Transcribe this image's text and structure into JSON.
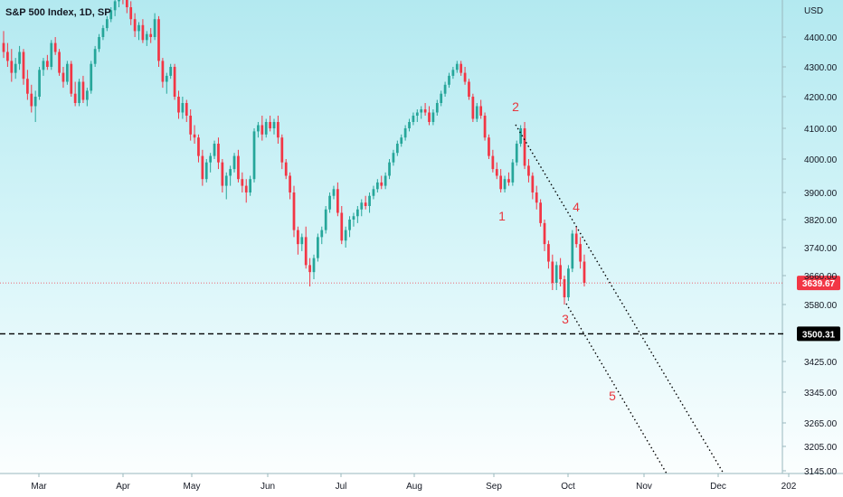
{
  "chart_data": {
    "type": "candlestick",
    "title": "S&P 500 Index, 1D, SP",
    "currency": "USD",
    "ylim": [
      3130,
      4560
    ],
    "y_ticks": [
      {
        "value": 4400,
        "label": "4400.00"
      },
      {
        "value": 4300,
        "label": "4300.00"
      },
      {
        "value": 4200,
        "label": "4200.00"
      },
      {
        "value": 4100,
        "label": "4100.00"
      },
      {
        "value": 4000,
        "label": "4000.00"
      },
      {
        "value": 3900,
        "label": "3900.00"
      },
      {
        "value": 3820,
        "label": "3820.00"
      },
      {
        "value": 3740,
        "label": "3740.00"
      },
      {
        "value": 3660,
        "label": "3660.00"
      },
      {
        "value": 3580,
        "label": "3580.00"
      },
      {
        "value": 3425,
        "label": "3425.00"
      },
      {
        "value": 3345,
        "label": "3345.00"
      },
      {
        "value": 3265,
        "label": "3265.00"
      },
      {
        "value": 3205,
        "label": "3205.00"
      },
      {
        "value": 3145,
        "label": "3145.00"
      }
    ],
    "x_ticks": [
      "Mar",
      "Apr",
      "May",
      "Jun",
      "Jul",
      "Aug",
      "Sep",
      "Oct",
      "Nov",
      "Dec",
      "202"
    ],
    "last_price": {
      "value": 3639.67,
      "label": "3639.67",
      "color": "#f23645"
    },
    "horizontal_level": {
      "value": 3500.31,
      "label": "3500.31",
      "style": "dashed",
      "color": "#000000"
    },
    "colors": {
      "up": "#26a69a",
      "down": "#f23645"
    },
    "wave_labels": [
      "1",
      "2",
      "3",
      "4",
      "5"
    ],
    "wave_label_color": "#e8363d",
    "series": [
      {
        "name": "",
        "values": [
          [
            4380,
            4420,
            4330,
            4350
          ],
          [
            4350,
            4380,
            4300,
            4320
          ],
          [
            4320,
            4360,
            4250,
            4280
          ],
          [
            4280,
            4330,
            4260,
            4310
          ],
          [
            4310,
            4370,
            4290,
            4350
          ],
          [
            4350,
            4360,
            4240,
            4260
          ],
          [
            4260,
            4290,
            4190,
            4210
          ],
          [
            4210,
            4240,
            4150,
            4170
          ],
          [
            4170,
            4220,
            4120,
            4200
          ],
          [
            4200,
            4300,
            4190,
            4290
          ],
          [
            4290,
            4330,
            4270,
            4320
          ],
          [
            4320,
            4340,
            4290,
            4300
          ],
          [
            4300,
            4390,
            4290,
            4380
          ],
          [
            4380,
            4400,
            4340,
            4350
          ],
          [
            4350,
            4360,
            4270,
            4280
          ],
          [
            4280,
            4300,
            4230,
            4250
          ],
          [
            4250,
            4320,
            4240,
            4310
          ],
          [
            4310,
            4320,
            4200,
            4210
          ],
          [
            4210,
            4250,
            4170,
            4180
          ],
          [
            4180,
            4260,
            4170,
            4250
          ],
          [
            4250,
            4270,
            4180,
            4190
          ],
          [
            4190,
            4230,
            4170,
            4220
          ],
          [
            4220,
            4320,
            4210,
            4310
          ],
          [
            4310,
            4370,
            4300,
            4360
          ],
          [
            4360,
            4410,
            4350,
            4400
          ],
          [
            4400,
            4440,
            4390,
            4430
          ],
          [
            4430,
            4470,
            4420,
            4460
          ],
          [
            4460,
            4500,
            4450,
            4490
          ],
          [
            4490,
            4530,
            4470,
            4520
          ],
          [
            4520,
            4560,
            4500,
            4540
          ],
          [
            4540,
            4560,
            4510,
            4530
          ],
          [
            4530,
            4550,
            4480,
            4500
          ],
          [
            4500,
            4520,
            4440,
            4460
          ],
          [
            4460,
            4480,
            4400,
            4420
          ],
          [
            4420,
            4450,
            4390,
            4440
          ],
          [
            4440,
            4460,
            4380,
            4390
          ],
          [
            4390,
            4420,
            4370,
            4410
          ],
          [
            4410,
            4430,
            4380,
            4400
          ],
          [
            4400,
            4480,
            4390,
            4460
          ],
          [
            4460,
            4470,
            4300,
            4320
          ],
          [
            4320,
            4330,
            4230,
            4250
          ],
          [
            4250,
            4280,
            4210,
            4270
          ],
          [
            4270,
            4310,
            4260,
            4300
          ],
          [
            4300,
            4310,
            4190,
            4200
          ],
          [
            4200,
            4220,
            4130,
            4150
          ],
          [
            4150,
            4200,
            4130,
            4180
          ],
          [
            4180,
            4190,
            4120,
            4140
          ],
          [
            4140,
            4160,
            4060,
            4080
          ],
          [
            4080,
            4110,
            4050,
            4070
          ],
          [
            4070,
            4080,
            3990,
            4010
          ],
          [
            4010,
            4030,
            3920,
            3940
          ],
          [
            3940,
            4000,
            3930,
            3990
          ],
          [
            3990,
            4020,
            3960,
            4010
          ],
          [
            4010,
            4060,
            4000,
            4050
          ],
          [
            4050,
            4070,
            3970,
            3990
          ],
          [
            3990,
            4000,
            3900,
            3920
          ],
          [
            3920,
            3960,
            3880,
            3950
          ],
          [
            3950,
            3980,
            3920,
            3970
          ],
          [
            3970,
            4020,
            3960,
            4010
          ],
          [
            4010,
            4030,
            3930,
            3940
          ],
          [
            3940,
            3960,
            3900,
            3920
          ],
          [
            3920,
            3940,
            3870,
            3900
          ],
          [
            3900,
            3950,
            3890,
            3940
          ],
          [
            3940,
            4100,
            3930,
            4090
          ],
          [
            4090,
            4120,
            4070,
            4110
          ],
          [
            4110,
            4140,
            4060,
            4080
          ],
          [
            4080,
            4130,
            4070,
            4120
          ],
          [
            4120,
            4140,
            4090,
            4100
          ],
          [
            4100,
            4130,
            4080,
            4120
          ],
          [
            4120,
            4140,
            4050,
            4070
          ],
          [
            4070,
            4080,
            3970,
            3990
          ],
          [
            3990,
            4000,
            3940,
            3950
          ],
          [
            3950,
            3960,
            3880,
            3900
          ],
          [
            3900,
            3920,
            3770,
            3790
          ],
          [
            3790,
            3800,
            3720,
            3750
          ],
          [
            3750,
            3780,
            3730,
            3770
          ],
          [
            3770,
            3800,
            3680,
            3690
          ],
          [
            3690,
            3710,
            3630,
            3670
          ],
          [
            3670,
            3720,
            3650,
            3710
          ],
          [
            3710,
            3780,
            3700,
            3770
          ],
          [
            3770,
            3800,
            3750,
            3790
          ],
          [
            3790,
            3860,
            3780,
            3850
          ],
          [
            3850,
            3900,
            3840,
            3890
          ],
          [
            3890,
            3920,
            3880,
            3910
          ],
          [
            3910,
            3930,
            3830,
            3840
          ],
          [
            3840,
            3860,
            3750,
            3760
          ],
          [
            3760,
            3800,
            3740,
            3790
          ],
          [
            3790,
            3830,
            3770,
            3820
          ],
          [
            3820,
            3840,
            3800,
            3830
          ],
          [
            3830,
            3860,
            3810,
            3850
          ],
          [
            3850,
            3880,
            3830,
            3870
          ],
          [
            3870,
            3890,
            3850,
            3860
          ],
          [
            3860,
            3900,
            3840,
            3890
          ],
          [
            3890,
            3920,
            3880,
            3910
          ],
          [
            3910,
            3940,
            3900,
            3930
          ],
          [
            3930,
            3950,
            3910,
            3920
          ],
          [
            3920,
            3960,
            3910,
            3950
          ],
          [
            3950,
            4000,
            3940,
            3990
          ],
          [
            3990,
            4030,
            3980,
            4020
          ],
          [
            4020,
            4060,
            4010,
            4050
          ],
          [
            4050,
            4080,
            4040,
            4070
          ],
          [
            4070,
            4110,
            4060,
            4100
          ],
          [
            4100,
            4130,
            4090,
            4120
          ],
          [
            4120,
            4150,
            4110,
            4140
          ],
          [
            4140,
            4160,
            4120,
            4150
          ],
          [
            4150,
            4170,
            4130,
            4160
          ],
          [
            4160,
            4180,
            4140,
            4150
          ],
          [
            4150,
            4170,
            4110,
            4120
          ],
          [
            4120,
            4160,
            4110,
            4150
          ],
          [
            4150,
            4190,
            4140,
            4180
          ],
          [
            4180,
            4220,
            4170,
            4210
          ],
          [
            4210,
            4250,
            4200,
            4240
          ],
          [
            4240,
            4280,
            4230,
            4270
          ],
          [
            4270,
            4300,
            4260,
            4290
          ],
          [
            4290,
            4320,
            4280,
            4310
          ],
          [
            4310,
            4320,
            4270,
            4280
          ],
          [
            4280,
            4300,
            4240,
            4250
          ],
          [
            4250,
            4260,
            4190,
            4200
          ],
          [
            4200,
            4210,
            4120,
            4130
          ],
          [
            4130,
            4180,
            4120,
            4170
          ],
          [
            4170,
            4190,
            4130,
            4140
          ],
          [
            4140,
            4150,
            4060,
            4070
          ],
          [
            4070,
            4080,
            4000,
            4010
          ],
          [
            4010,
            4030,
            3960,
            3970
          ],
          [
            3970,
            3990,
            3940,
            3950
          ],
          [
            3950,
            3970,
            3900,
            3910
          ],
          [
            3910,
            3950,
            3900,
            3940
          ],
          [
            3940,
            3960,
            3920,
            3930
          ],
          [
            3930,
            4000,
            3920,
            3990
          ],
          [
            3990,
            4060,
            3980,
            4050
          ],
          [
            4050,
            4110,
            4040,
            4100
          ],
          [
            4100,
            4120,
            3970,
            3980
          ],
          [
            3980,
            4000,
            3930,
            3950
          ],
          [
            3950,
            3960,
            3880,
            3900
          ],
          [
            3900,
            3920,
            3850,
            3870
          ],
          [
            3870,
            3880,
            3800,
            3810
          ],
          [
            3810,
            3820,
            3730,
            3750
          ],
          [
            3750,
            3760,
            3680,
            3700
          ],
          [
            3700,
            3720,
            3620,
            3640
          ],
          [
            3640,
            3700,
            3620,
            3690
          ],
          [
            3690,
            3710,
            3630,
            3650
          ],
          [
            3650,
            3660,
            3580,
            3600
          ],
          [
            3600,
            3690,
            3590,
            3680
          ],
          [
            3680,
            3790,
            3670,
            3780
          ],
          [
            3780,
            3800,
            3740,
            3750
          ],
          [
            3750,
            3770,
            3680,
            3700
          ],
          [
            3700,
            3720,
            3630,
            3640
          ]
        ]
      }
    ]
  }
}
